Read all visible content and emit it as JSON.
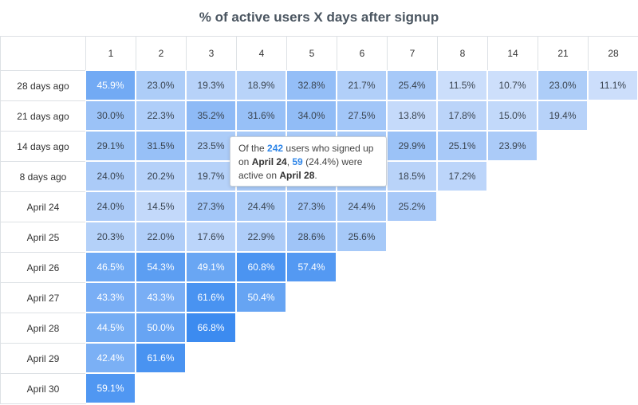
{
  "title": "% of active users X days after signup",
  "columns": [
    "1",
    "2",
    "3",
    "4",
    "5",
    "6",
    "7",
    "8",
    "14",
    "21",
    "28"
  ],
  "rows": [
    {
      "label": "28 days ago",
      "cells": [
        "45.9%",
        "23.0%",
        "19.3%",
        "18.9%",
        "32.8%",
        "21.7%",
        "25.4%",
        "11.5%",
        "10.7%",
        "23.0%",
        "11.1%"
      ]
    },
    {
      "label": "21 days ago",
      "cells": [
        "30.0%",
        "22.3%",
        "35.2%",
        "31.6%",
        "34.0%",
        "27.5%",
        "13.8%",
        "17.8%",
        "15.0%",
        "19.4%"
      ]
    },
    {
      "label": "14 days ago",
      "cells": [
        "29.1%",
        "31.5%",
        "23.5%",
        null,
        null,
        null,
        "29.9%",
        "25.1%",
        "23.9%"
      ]
    },
    {
      "label": "8 days ago",
      "cells": [
        "24.0%",
        "20.2%",
        "19.7%",
        null,
        null,
        null,
        "18.5%",
        "17.2%"
      ]
    },
    {
      "label": "April 24",
      "cells": [
        "24.0%",
        "14.5%",
        "27.3%",
        "24.4%",
        "27.3%",
        "24.4%",
        "25.2%"
      ]
    },
    {
      "label": "April 25",
      "cells": [
        "20.3%",
        "22.0%",
        "17.6%",
        "22.9%",
        "28.6%",
        "25.6%"
      ]
    },
    {
      "label": "April 26",
      "cells": [
        "46.5%",
        "54.3%",
        "49.1%",
        "60.8%",
        "57.4%"
      ]
    },
    {
      "label": "April 27",
      "cells": [
        "43.3%",
        "43.3%",
        "61.6%",
        "50.4%"
      ]
    },
    {
      "label": "April 28",
      "cells": [
        "44.5%",
        "50.0%",
        "66.8%"
      ]
    },
    {
      "label": "April 29",
      "cells": [
        "42.4%",
        "61.6%"
      ]
    },
    {
      "label": "April 30",
      "cells": [
        "59.1%"
      ]
    }
  ],
  "tooltip": {
    "parts": [
      {
        "text": "Of the ",
        "style": "plain"
      },
      {
        "text": "242",
        "style": "blue"
      },
      {
        "text": " users who signed up on ",
        "style": "plain"
      },
      {
        "text": "April 24",
        "style": "bold"
      },
      {
        "text": ", ",
        "style": "plain"
      },
      {
        "text": "59",
        "style": "blue"
      },
      {
        "text": " (24.4%) were active on ",
        "style": "plain"
      },
      {
        "text": "April 28",
        "style": "bold"
      },
      {
        "text": ".",
        "style": "plain"
      }
    ]
  }
}
